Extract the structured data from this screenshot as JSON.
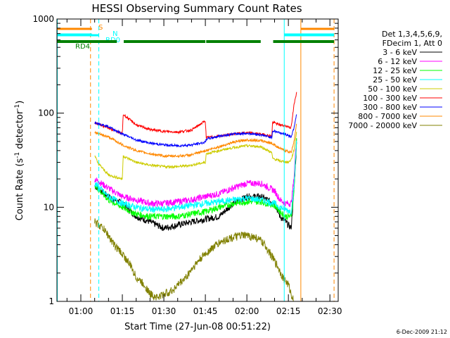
{
  "chart_data": {
    "type": "line",
    "title": "HESSI Observing Summary Count Rates",
    "xlabel": "Start Time (27-Jun-08 00:51:22)",
    "ylabel_main": "Count Rate (s",
    "ylabel_sup": "-1",
    "ylabel_mid": " detector",
    "ylabel_end": ")",
    "footer_date": "6-Dec-2009 21:12",
    "y_scale": "log",
    "ylim": [
      1,
      1000
    ],
    "xlim": [
      51.37,
      153
    ],
    "x_ticks": [
      {
        "t": 60,
        "label": "01:00"
      },
      {
        "t": 75,
        "label": "01:15"
      },
      {
        "t": 90,
        "label": "01:30"
      },
      {
        "t": 105,
        "label": "01:45"
      },
      {
        "t": 120,
        "label": "02:00"
      },
      {
        "t": 135,
        "label": "02:15"
      },
      {
        "t": 150,
        "label": "02:30"
      }
    ],
    "y_ticks": [
      {
        "v": 1,
        "label": "1"
      },
      {
        "v": 10,
        "label": "10"
      },
      {
        "v": 100,
        "label": "100"
      },
      {
        "v": 1000,
        "label": "1000"
      }
    ],
    "legend": {
      "placement": "right",
      "header1": "Det 1,3,4,5,6,9,",
      "header2": "FDecim 1, Att 0"
    },
    "series": [
      {
        "name": "3 - 6 keV",
        "color": "#000000",
        "x": [
          65,
          70,
          75,
          80,
          85,
          90,
          95,
          100,
          105,
          110,
          115,
          120,
          125,
          130,
          132,
          134,
          136,
          137,
          138
        ],
        "y": [
          17,
          13,
          11,
          8,
          7,
          6,
          6.5,
          7,
          7.5,
          8,
          11,
          13,
          13,
          11,
          8,
          7,
          6,
          15,
          50
        ]
      },
      {
        "name": "6 - 12 keV",
        "color": "#ff00ff",
        "x": [
          65,
          70,
          75,
          80,
          85,
          90,
          95,
          100,
          105,
          110,
          115,
          120,
          125,
          130,
          132,
          134,
          136,
          137,
          138
        ],
        "y": [
          20,
          16,
          13,
          12,
          11,
          11,
          11.5,
          12,
          13,
          14,
          16,
          18,
          18,
          15,
          12,
          11,
          11,
          20,
          60
        ]
      },
      {
        "name": "12 - 25 keV",
        "color": "#00ff00",
        "x": [
          65,
          70,
          75,
          80,
          85,
          90,
          95,
          100,
          105,
          110,
          115,
          120,
          125,
          130,
          132,
          134,
          136,
          137,
          138
        ],
        "y": [
          17,
          12,
          10,
          8.5,
          8,
          8,
          8,
          8.5,
          9,
          10,
          11,
          11.5,
          11.5,
          10.5,
          9,
          8,
          8,
          15,
          55
        ]
      },
      {
        "name": "25 - 50 keV",
        "color": "#00ffff",
        "x": [
          65,
          70,
          75,
          80,
          85,
          90,
          95,
          100,
          105,
          110,
          115,
          120,
          125,
          130,
          132,
          134,
          136,
          137,
          138
        ],
        "y": [
          18,
          13,
          11,
          10,
          9.5,
          9.5,
          10,
          10.5,
          11,
          11.5,
          12,
          12.5,
          12,
          11,
          10,
          9.5,
          9,
          16,
          55
        ]
      },
      {
        "name": "50 - 100 keV",
        "color": "#cccc00",
        "x": [
          65,
          66,
          70,
          75,
          75.3,
          80,
          85,
          90,
          95,
          100,
          105,
          105.3,
          110,
          115,
          120,
          125,
          129,
          129.3,
          132,
          135,
          136,
          137,
          138
        ],
        "y": [
          36,
          30,
          22,
          20,
          35,
          30,
          28,
          27,
          27,
          28,
          30,
          37,
          40,
          43,
          45,
          44,
          38,
          33,
          31,
          30,
          32,
          40,
          65
        ]
      },
      {
        "name": "100 - 300 keV",
        "color": "#ff0000",
        "x": [
          65,
          66,
          70,
          75,
          75.3,
          80,
          85,
          90,
          95,
          100,
          105,
          105.3,
          110,
          115,
          120,
          125,
          129,
          129.3,
          132,
          135,
          136,
          137,
          138
        ],
        "y": [
          79,
          77,
          70,
          60,
          97,
          75,
          67,
          64,
          63,
          66,
          83,
          55,
          57,
          60,
          62,
          60,
          57,
          80,
          75,
          72,
          70,
          120,
          170
        ]
      },
      {
        "name": "300 - 800 keV",
        "color": "#0000ff",
        "x": [
          65,
          70,
          75,
          80,
          85,
          90,
          95,
          100,
          105,
          105.3,
          110,
          115,
          120,
          125,
          129,
          129.3,
          132,
          135,
          136,
          137,
          138
        ],
        "y": [
          80,
          72,
          60,
          52,
          48,
          46,
          45,
          46,
          49,
          53,
          57,
          60,
          61,
          59,
          55,
          65,
          62,
          58,
          56,
          70,
          100
        ]
      },
      {
        "name": "800 - 7000 keV",
        "color": "#ff8800",
        "x": [
          65,
          70,
          75,
          80,
          85,
          90,
          95,
          100,
          105,
          110,
          115,
          120,
          125,
          129,
          132,
          135,
          136,
          137,
          138
        ],
        "y": [
          62,
          56,
          46,
          40,
          37,
          35,
          35,
          36,
          40,
          44,
          49,
          52,
          51,
          48,
          42,
          39,
          38,
          50,
          80
        ]
      },
      {
        "name": "7000 - 20000 keV",
        "color": "#808000",
        "x": [
          65,
          68,
          70,
          72,
          75,
          78,
          80,
          83,
          85,
          88,
          90,
          93,
          95,
          98,
          100,
          103,
          105,
          108,
          110,
          113,
          115,
          118,
          120,
          123,
          125,
          127,
          129,
          131,
          133,
          135,
          136,
          137
        ],
        "y": [
          7,
          6,
          5,
          4,
          3.2,
          2.4,
          1.8,
          1.5,
          1.2,
          1.1,
          1.2,
          1.3,
          1.5,
          1.8,
          2.2,
          2.8,
          3.2,
          3.8,
          4.2,
          4.6,
          4.8,
          5,
          5,
          4.8,
          4.4,
          3.8,
          3,
          2.4,
          1.8,
          1.5,
          1.2,
          1.0
        ]
      }
    ],
    "flags": [
      {
        "label": "S",
        "color": "#ff8800",
        "segments": [
          [
            51.5,
            64
          ],
          [
            139.5,
            151.5
          ]
        ]
      },
      {
        "label": "N",
        "color": "#00ffff",
        "segments": [
          [
            51.5,
            64
          ],
          [
            133.5,
            151.5
          ]
        ]
      },
      {
        "label": "RD0",
        "color": "#00ffff",
        "segments": [
          [
            51.5,
            66.5
          ],
          [
            133.5,
            151.5
          ]
        ]
      },
      {
        "label": "RD4",
        "color": "#008000",
        "segments": [
          [
            51.5,
            66.5
          ],
          [
            66.5,
            73
          ],
          [
            75.5,
            105
          ],
          [
            105.3,
            125
          ],
          [
            129.5,
            151.5
          ]
        ]
      }
    ],
    "flag_lines": [
      {
        "t": 51.5,
        "color": "#00ffff",
        "dashed": false
      },
      {
        "t": 63.5,
        "color": "#ff8800",
        "dashed": true
      },
      {
        "t": 66.5,
        "color": "#00ffff",
        "dashed": true
      },
      {
        "t": 133.5,
        "color": "#00ffff",
        "dashed": false
      },
      {
        "t": 139.5,
        "color": "#ff8800",
        "dashed": false
      },
      {
        "t": 151.5,
        "color": "#ff8800",
        "dashed": true
      }
    ]
  }
}
